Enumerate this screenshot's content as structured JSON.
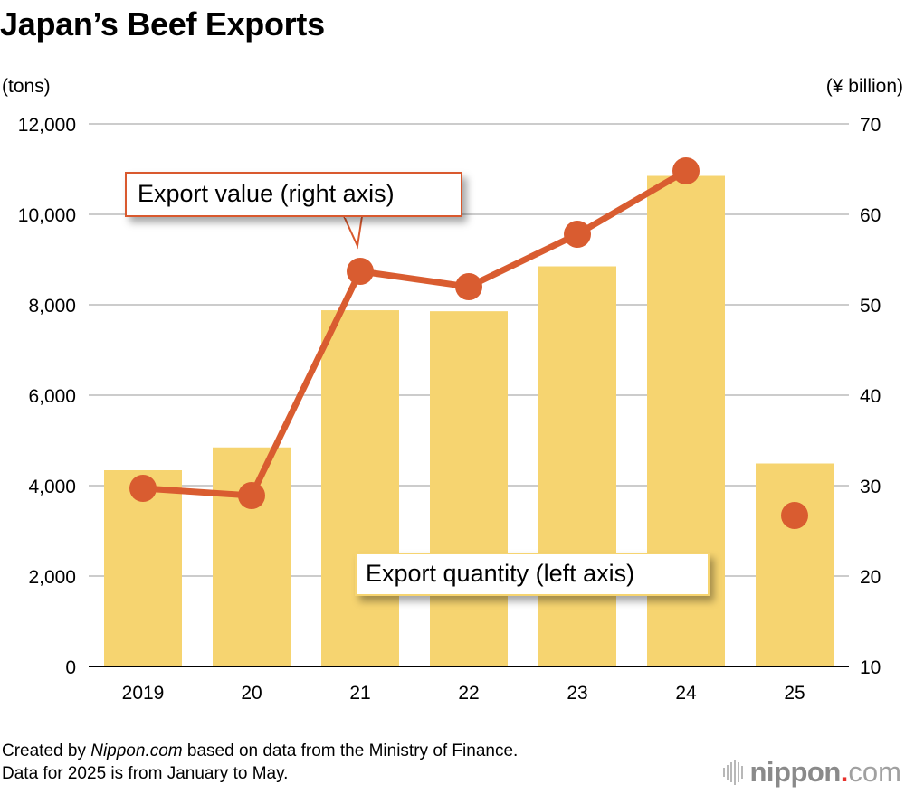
{
  "title": "Japan’s Beef Exports",
  "axes": {
    "left_unit": "(tons)",
    "right_unit": "(¥ billion)",
    "left_ticks": [
      "12,000",
      "10,000",
      "8,000",
      "6,000",
      "4,000",
      "2,000",
      "0"
    ],
    "right_ticks": [
      "70",
      "60",
      "50",
      "40",
      "30",
      "20",
      "10"
    ],
    "x_ticks": [
      "2019",
      "20",
      "21",
      "22",
      "23",
      "24",
      "25"
    ]
  },
  "callouts": {
    "value": "Export value (right axis)",
    "quantity": "Export quantity (left axis)"
  },
  "footer": {
    "line1_prefix": "Created by ",
    "line1_brand": "Nippon.com",
    "line1_suffix": " based on data from the Ministry of Finance.",
    "line2": "Data for 2025 is from January to May."
  },
  "logo": {
    "name": "nippon",
    "dot": ".",
    "tld": "com"
  },
  "colors": {
    "bar": "#f6d470",
    "line": "#d95c30",
    "grid": "#cccccc",
    "axis": "#000000"
  },
  "chart_data": {
    "type": "bar+line",
    "title": "Japan’s Beef Exports",
    "categories": [
      "2019",
      "2020",
      "2021",
      "2022",
      "2023",
      "2024",
      "2025"
    ],
    "x_tick_labels": [
      "2019",
      "20",
      "21",
      "22",
      "23",
      "24",
      "25"
    ],
    "series": [
      {
        "name": "Export quantity (left axis)",
        "type": "bar",
        "axis": "left",
        "unit": "tons",
        "values": [
          4340,
          4845,
          7879,
          7857,
          8850,
          10850,
          4490
        ]
      },
      {
        "name": "Export value (right axis)",
        "type": "line",
        "axis": "right",
        "unit": "¥ billion",
        "values": [
          29.7,
          28.9,
          53.7,
          52.0,
          57.8,
          64.8,
          26.7
        ],
        "note": "2025 point shown unconnected (January–May data)"
      }
    ],
    "ylabel_left": "(tons)",
    "ylabel_right": "(¥ billion)",
    "ylim_left": [
      0,
      12000
    ],
    "ylim_right": [
      10,
      70
    ],
    "yticks_left": [
      0,
      2000,
      4000,
      6000,
      8000,
      10000,
      12000
    ],
    "yticks_right": [
      10,
      20,
      30,
      40,
      50,
      60,
      70
    ],
    "grid": true,
    "legend": "callout labels",
    "annotations": [
      "Created by Nippon.com based on data from the Ministry of Finance.",
      "Data for 2025 is from January to May."
    ]
  }
}
